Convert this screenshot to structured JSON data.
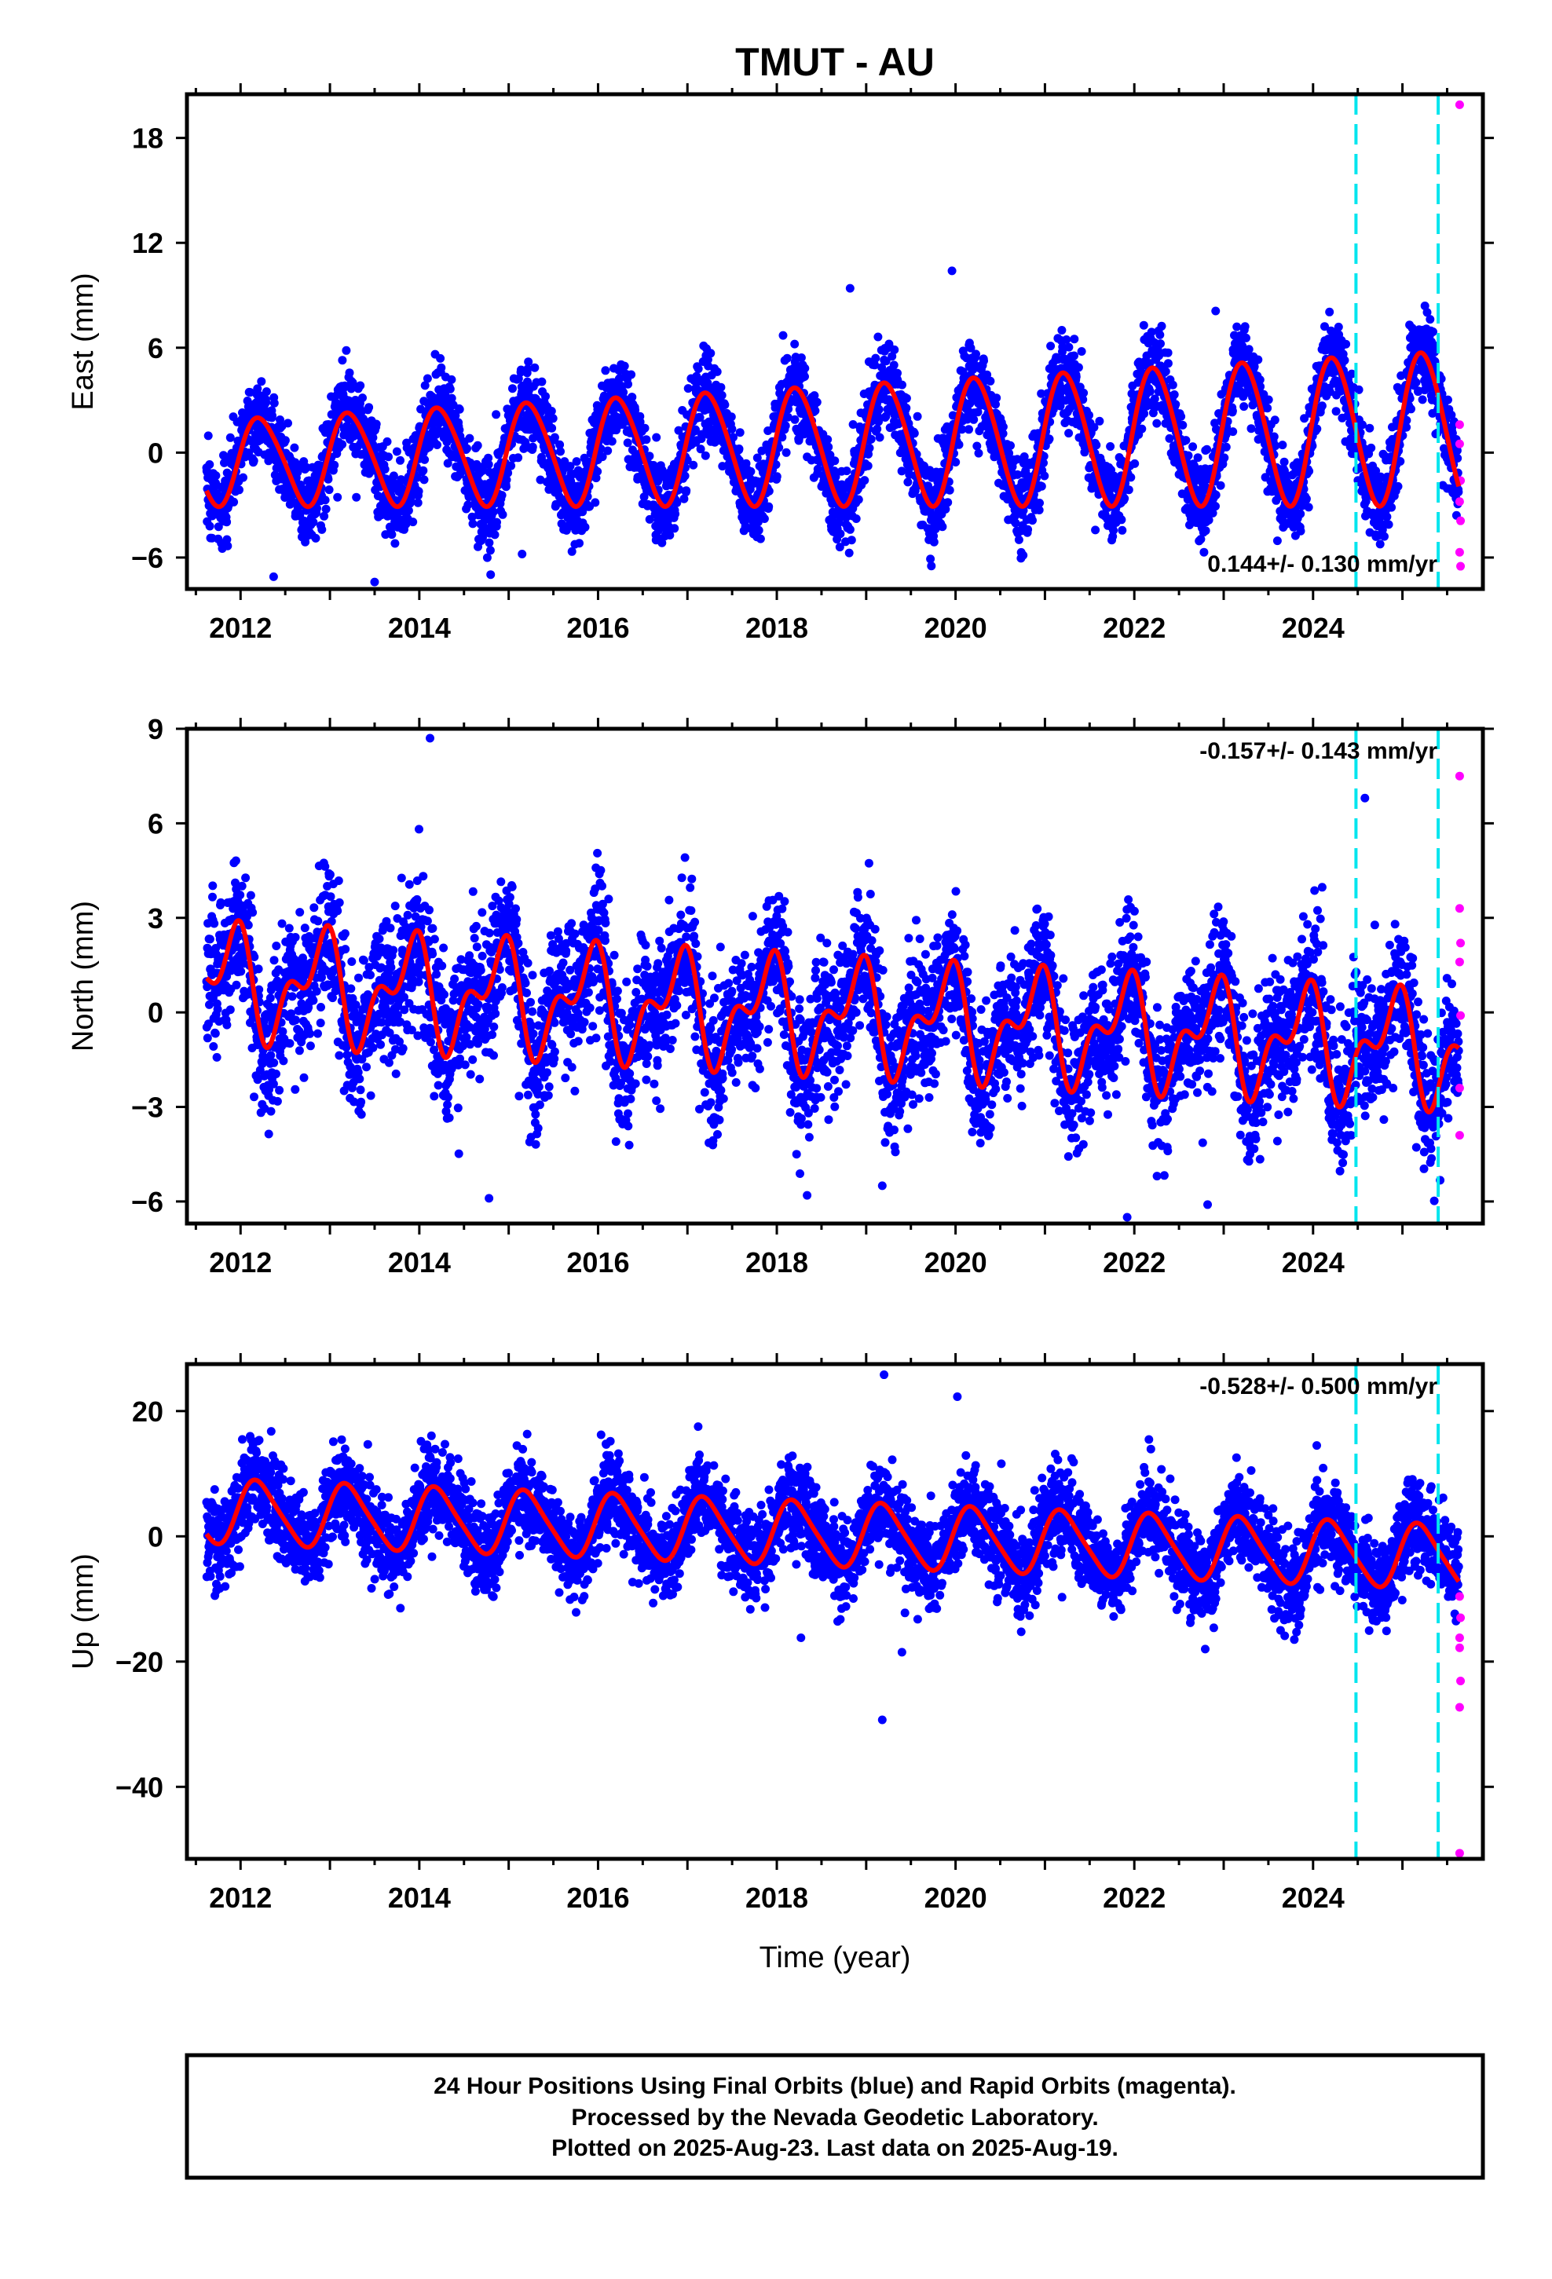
{
  "title": "TMUT - AU",
  "xlabel": "Time (year)",
  "footer": {
    "line1": "24 Hour Positions Using Final Orbits (blue) and Rapid Orbits (magenta).",
    "line2": "Processed by the Nevada Geodetic Laboratory.",
    "line3": "Plotted on 2025-Aug-23. Last data on 2025-Aug-19."
  },
  "colors": {
    "final_orbits": "#0000ff",
    "rapid_orbits": "#ff00ff",
    "model_fit": "#ff0000",
    "breaks": "#00e5ee"
  },
  "chart_data": [
    {
      "type": "scatter",
      "component": "east",
      "ylabel": "East (mm)",
      "xlim": [
        2011.4,
        2025.9
      ],
      "ylim": [
        -7.8,
        20.5
      ],
      "yticks": [
        -6,
        0,
        6,
        12,
        18
      ],
      "xticks": [
        2012,
        2014,
        2016,
        2018,
        2020,
        2022,
        2024
      ],
      "grid": false,
      "rate_label": "0.144+/- 0.130 mm/yr",
      "rate_position": "bottom-right",
      "breaks": [
        2024.48,
        2025.4
      ],
      "model": {
        "series_start": 2011.62,
        "series_end": 2025.63,
        "trend": 0.144,
        "offset": -0.55,
        "annual_amp": 2.4,
        "annual_phase": 0.15,
        "semiannual_amp": 0.3,
        "semiannual_phase": 0.6,
        "amp_growth": 0.06,
        "noise": 1.2
      },
      "outliers": [
        {
          "x": 2018.82,
          "y": 9.4
        },
        {
          "x": 2019.96,
          "y": 10.4
        },
        {
          "x": 2022.91,
          "y": 8.1
        },
        {
          "x": 2012.37,
          "y": -7.1
        },
        {
          "x": 2013.5,
          "y": -7.4
        },
        {
          "x": 2015.15,
          "y": -5.8
        }
      ],
      "rapid_points": [
        {
          "x": 2025.64,
          "y": 19.9
        },
        {
          "x": 2025.64,
          "y": 1.6
        },
        {
          "x": 2025.64,
          "y": 0.5
        },
        {
          "x": 2025.65,
          "y": -1.6
        },
        {
          "x": 2025.64,
          "y": -2.8
        },
        {
          "x": 2025.65,
          "y": -3.9
        },
        {
          "x": 2025.64,
          "y": -5.7
        },
        {
          "x": 2025.65,
          "y": -6.5
        }
      ]
    },
    {
      "type": "scatter",
      "component": "north",
      "ylabel": "North (mm)",
      "xlim": [
        2011.4,
        2025.9
      ],
      "ylim": [
        -6.7,
        9.0
      ],
      "yticks": [
        -6,
        -3,
        0,
        3,
        6,
        9
      ],
      "xticks": [
        2012,
        2014,
        2016,
        2018,
        2020,
        2022,
        2024
      ],
      "grid": false,
      "rate_label": "-0.157+/- 0.143 mm/yr",
      "rate_position": "top-right",
      "breaks": [
        2024.48,
        2025.4
      ],
      "model": {
        "series_start": 2011.62,
        "series_end": 2025.63,
        "trend": -0.157,
        "offset": 1.0,
        "annual_amp": 1.4,
        "annual_phase": 2.3,
        "semiannual_amp": 0.9,
        "semiannual_phase": 1.4,
        "amp_growth": 0.0,
        "noise": 1.1
      },
      "outliers": [
        {
          "x": 2014.12,
          "y": 8.7
        },
        {
          "x": 2024.58,
          "y": 6.8
        },
        {
          "x": 2014.78,
          "y": -5.9
        },
        {
          "x": 2019.18,
          "y": -5.5
        },
        {
          "x": 2021.92,
          "y": -6.5
        },
        {
          "x": 2022.82,
          "y": -6.1
        }
      ],
      "rapid_points": [
        {
          "x": 2025.64,
          "y": 7.5
        },
        {
          "x": 2025.64,
          "y": 3.3
        },
        {
          "x": 2025.65,
          "y": 2.2
        },
        {
          "x": 2025.64,
          "y": 1.6
        },
        {
          "x": 2025.65,
          "y": -0.1
        },
        {
          "x": 2025.64,
          "y": -2.4
        },
        {
          "x": 2025.64,
          "y": -3.9
        }
      ]
    },
    {
      "type": "scatter",
      "component": "up",
      "ylabel": "Up (mm)",
      "xlim": [
        2011.4,
        2025.9
      ],
      "ylim": [
        -51.5,
        27.5
      ],
      "yticks": [
        -40,
        -20,
        0,
        20
      ],
      "xticks": [
        2012,
        2014,
        2016,
        2018,
        2020,
        2022,
        2024
      ],
      "grid": false,
      "rate_label": "-0.528+/- 0.500 mm/yr",
      "rate_position": "top-right",
      "breaks": [
        2024.48,
        2025.4
      ],
      "model": {
        "series_start": 2011.62,
        "series_end": 2025.63,
        "trend": -0.528,
        "offset": 4.0,
        "annual_amp": 5.0,
        "annual_phase": 0.3,
        "semiannual_amp": 0.8,
        "semiannual_phase": 0.5,
        "amp_growth": 0.0,
        "noise": 3.6
      },
      "outliers": [
        {
          "x": 2019.2,
          "y": 25.8
        },
        {
          "x": 2020.02,
          "y": 22.3
        },
        {
          "x": 2019.18,
          "y": -29.3
        },
        {
          "x": 2018.27,
          "y": -16.2
        },
        {
          "x": 2019.4,
          "y": -18.5
        }
      ],
      "rapid_points": [
        {
          "x": 2025.64,
          "y": -9.6
        },
        {
          "x": 2025.65,
          "y": -13.0
        },
        {
          "x": 2025.64,
          "y": -16.2
        },
        {
          "x": 2025.64,
          "y": -17.8
        },
        {
          "x": 2025.65,
          "y": -23.1
        },
        {
          "x": 2025.64,
          "y": -27.3
        },
        {
          "x": 2025.64,
          "y": -50.6
        }
      ]
    }
  ]
}
